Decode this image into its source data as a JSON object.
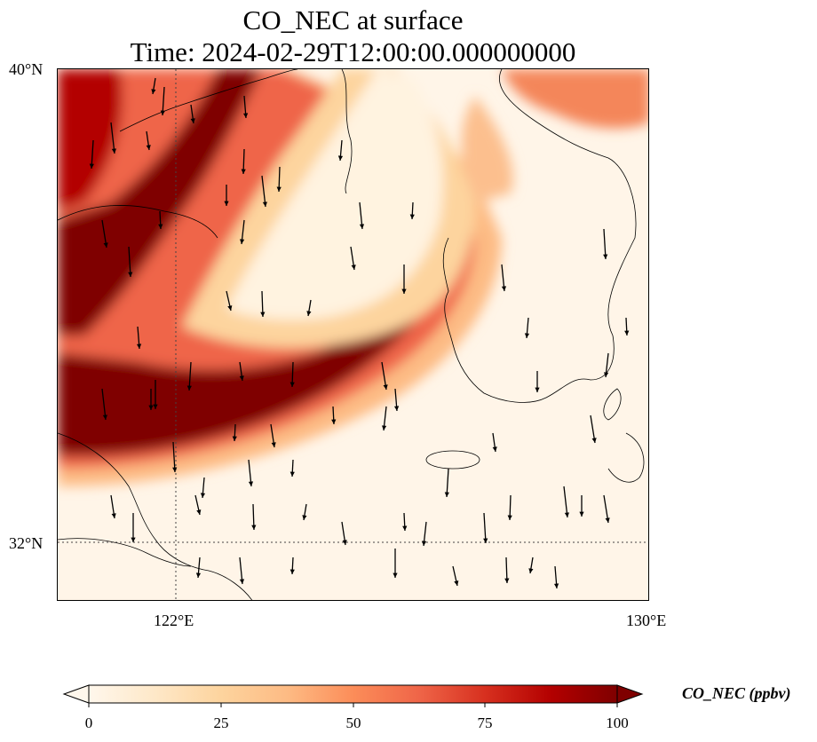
{
  "title": {
    "line1": "CO_NEC at surface",
    "line2": "Time: 2024-02-29T12:00:00.000000000"
  },
  "map": {
    "lat_labels": [
      "40°N",
      "32°N"
    ],
    "lon_labels": [
      "122°E",
      "130°E"
    ],
    "extent": {
      "lon_min": 120,
      "lon_max": 130,
      "lat_min": 31,
      "lat_max": 40
    },
    "gridlines": {
      "lon": 122,
      "lat": 32
    }
  },
  "colorbar": {
    "label": "CO_NEC (ppbv)",
    "ticks": [
      "0",
      "25",
      "50",
      "75",
      "100"
    ],
    "range": [
      0,
      100
    ],
    "extend": "both",
    "colormap": [
      "#fff7ec",
      "#fee8c8",
      "#fdd49e",
      "#fdbb84",
      "#fc8d59",
      "#ef6548",
      "#d7301f",
      "#b30000",
      "#7f0000"
    ]
  }
}
